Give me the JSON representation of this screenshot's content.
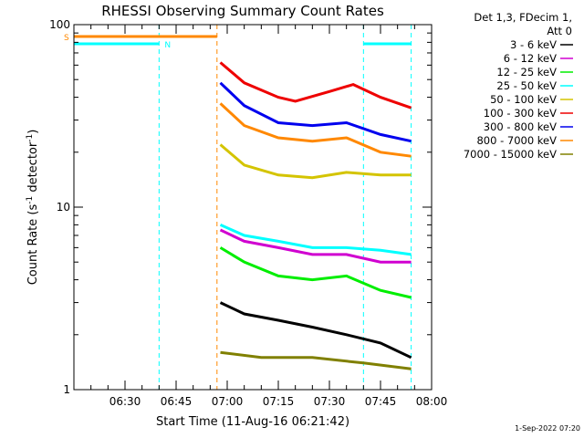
{
  "chart_data": {
    "type": "line",
    "title": "RHESSI Observing Summary Count Rates",
    "xlabel": "Start Time (11-Aug-16 06:21:42)",
    "ylabel_prefix": "Count Rate (s",
    "ylabel_mid": " detector",
    "ylabel_suffix": ")",
    "ylabel_exp": "-1",
    "y_scale": "log",
    "ylim": [
      1,
      100
    ],
    "y_ticks": [
      "1",
      "10",
      "100"
    ],
    "xlim": [
      "06:15",
      "08:00"
    ],
    "x_ticks": [
      "06:30",
      "06:45",
      "07:00",
      "07:15",
      "07:30",
      "07:45",
      "08:00"
    ],
    "grid": false,
    "legend_position": "right",
    "legend_header": [
      "Det 1,3, FDecim 1,",
      "Att 0"
    ],
    "series": [
      {
        "name": "3 - 6 keV",
        "color": "#000000",
        "values": [
          [
            "06:58",
            3.0
          ],
          [
            "07:05",
            2.6
          ],
          [
            "07:15",
            2.4
          ],
          [
            "07:25",
            2.2
          ],
          [
            "07:35",
            2.0
          ],
          [
            "07:45",
            1.8
          ],
          [
            "07:54",
            1.5
          ]
        ]
      },
      {
        "name": "6 - 12 keV",
        "color": "#d000d0",
        "values": [
          [
            "06:58",
            7.5
          ],
          [
            "07:05",
            6.5
          ],
          [
            "07:15",
            6.0
          ],
          [
            "07:25",
            5.5
          ],
          [
            "07:35",
            5.5
          ],
          [
            "07:45",
            5.0
          ],
          [
            "07:54",
            5.0
          ]
        ]
      },
      {
        "name": "12 - 25 keV",
        "color": "#00ee00",
        "values": [
          [
            "06:58",
            6.0
          ],
          [
            "07:05",
            5.0
          ],
          [
            "07:15",
            4.2
          ],
          [
            "07:25",
            4.0
          ],
          [
            "07:35",
            4.2
          ],
          [
            "07:45",
            3.5
          ],
          [
            "07:54",
            3.2
          ]
        ]
      },
      {
        "name": "25 - 50 keV",
        "color": "#00ffff",
        "values": [
          [
            "06:58",
            8.0
          ],
          [
            "07:05",
            7.0
          ],
          [
            "07:15",
            6.5
          ],
          [
            "07:25",
            6.0
          ],
          [
            "07:35",
            6.0
          ],
          [
            "07:45",
            5.8
          ],
          [
            "07:54",
            5.5
          ]
        ]
      },
      {
        "name": "50 - 100 keV",
        "color": "#d4c400",
        "values": [
          [
            "06:58",
            22
          ],
          [
            "07:05",
            17
          ],
          [
            "07:15",
            15
          ],
          [
            "07:25",
            14.5
          ],
          [
            "07:35",
            15.5
          ],
          [
            "07:45",
            15
          ],
          [
            "07:54",
            15
          ]
        ]
      },
      {
        "name": "100 - 300 keV",
        "color": "#ee0000",
        "values": [
          [
            "06:58",
            62
          ],
          [
            "07:05",
            48
          ],
          [
            "07:15",
            40
          ],
          [
            "07:20",
            38
          ],
          [
            "07:30",
            43
          ],
          [
            "07:37",
            47
          ],
          [
            "07:45",
            40
          ],
          [
            "07:54",
            35
          ]
        ]
      },
      {
        "name": "300 - 800 keV",
        "color": "#0000ee",
        "values": [
          [
            "06:58",
            48
          ],
          [
            "07:05",
            36
          ],
          [
            "07:15",
            29
          ],
          [
            "07:25",
            28
          ],
          [
            "07:35",
            29
          ],
          [
            "07:45",
            25
          ],
          [
            "07:54",
            23
          ]
        ]
      },
      {
        "name": "800 - 7000 keV",
        "color": "#ff8800",
        "values": [
          [
            "06:58",
            37
          ],
          [
            "07:05",
            28
          ],
          [
            "07:15",
            24
          ],
          [
            "07:25",
            23
          ],
          [
            "07:35",
            24
          ],
          [
            "07:45",
            20
          ],
          [
            "07:54",
            19
          ]
        ]
      },
      {
        "name": "7000 - 15000 keV",
        "color": "#808000",
        "values": [
          [
            "06:58",
            1.6
          ],
          [
            "07:10",
            1.5
          ],
          [
            "07:25",
            1.5
          ],
          [
            "07:40",
            1.4
          ],
          [
            "07:54",
            1.3
          ]
        ]
      }
    ],
    "flags": [
      {
        "label": "S",
        "color": "#ff8800",
        "start": "06:15",
        "end": "06:57"
      },
      {
        "label": "N",
        "color": "#00ffff",
        "start": "06:15",
        "end": "06:40"
      },
      {
        "label": "",
        "color": "#00ffff",
        "start": "07:40",
        "end": "07:54"
      }
    ]
  },
  "timestamp": "1-Sep-2022 07:20"
}
